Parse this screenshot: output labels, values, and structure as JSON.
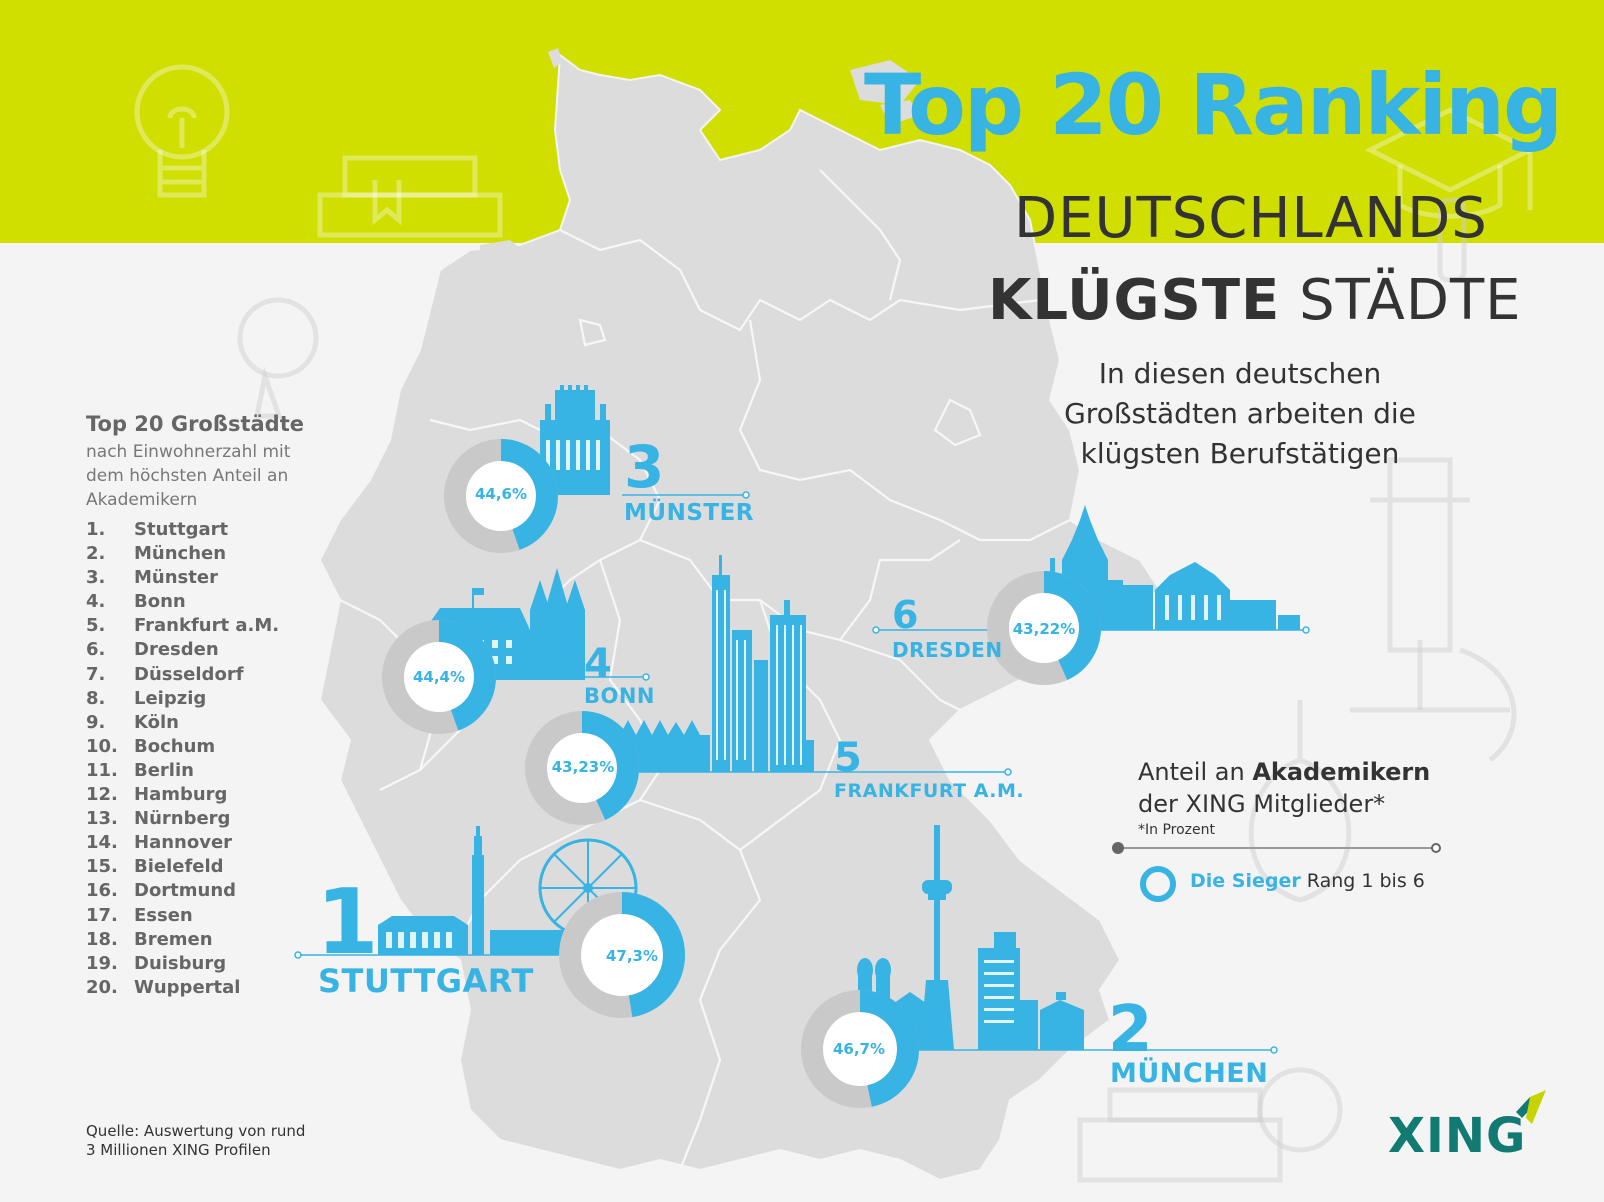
{
  "header": {
    "title": "Top 20 Ranking",
    "subtitle_line1": "DEUTSCHLANDS",
    "subtitle_bold": "KLÜGSTE",
    "subtitle_rest": "STÄDTE",
    "intro": "In diesen deutschen Großstädten arbeiten die klügsten Berufstätigen"
  },
  "sidebar": {
    "title": "Top 20 Großstädte",
    "subtitle": "nach Einwohnerzahl mit dem höchsten Anteil an Akademikern",
    "ranking": [
      {
        "rank": "1.",
        "city": "Stuttgart"
      },
      {
        "rank": "2.",
        "city": "München"
      },
      {
        "rank": "3.",
        "city": "Münster"
      },
      {
        "rank": "4.",
        "city": "Bonn"
      },
      {
        "rank": "5.",
        "city": "Frankfurt a.M."
      },
      {
        "rank": "6.",
        "city": "Dresden"
      },
      {
        "rank": "7.",
        "city": "Düsseldorf"
      },
      {
        "rank": "8.",
        "city": "Leipzig"
      },
      {
        "rank": "9.",
        "city": "Köln"
      },
      {
        "rank": "10.",
        "city": "Bochum"
      },
      {
        "rank": "11.",
        "city": "Berlin"
      },
      {
        "rank": "12.",
        "city": "Hamburg"
      },
      {
        "rank": "13.",
        "city": "Nürnberg"
      },
      {
        "rank": "14.",
        "city": "Hannover"
      },
      {
        "rank": "15.",
        "city": "Bielefeld"
      },
      {
        "rank": "16.",
        "city": "Dortmund"
      },
      {
        "rank": "17.",
        "city": "Essen"
      },
      {
        "rank": "18.",
        "city": "Bremen"
      },
      {
        "rank": "19.",
        "city": "Duisburg"
      },
      {
        "rank": "20.",
        "city": "Wuppertal"
      }
    ],
    "source_line1": "Quelle: Auswertung von rund",
    "source_line2": "3 Millionen XING Profilen"
  },
  "winners": [
    {
      "rank": "1",
      "city": "STUTTGART",
      "percent_label": "47,3%",
      "value": 47.3
    },
    {
      "rank": "2",
      "city": "MÜNCHEN",
      "percent_label": "46,7%",
      "value": 46.7
    },
    {
      "rank": "3",
      "city": "MÜNSTER",
      "percent_label": "44,6%",
      "value": 44.6
    },
    {
      "rank": "4",
      "city": "BONN",
      "percent_label": "44,4%",
      "value": 44.4
    },
    {
      "rank": "5",
      "city": "FRANKFURT A.M.",
      "percent_label": "43,23%",
      "value": 43.23
    },
    {
      "rank": "6",
      "city": "DRESDEN",
      "percent_label": "43,22%",
      "value": 43.22
    }
  ],
  "legend": {
    "line1_prefix": "Anteil an",
    "line1_bold": "Akademikern",
    "line2": "der XING Mitglieder*",
    "note": "*In Prozent",
    "sieger_bold": "Die Sieger",
    "sieger_rest": "Rang 1 bis 6"
  },
  "brand": {
    "name": "XING"
  },
  "colors": {
    "accent_blue": "#37b3e4",
    "band_green": "#d0de00",
    "map_grey": "#dcdcdc",
    "xing_teal": "#117a72",
    "xing_lime": "#c8d400"
  }
}
